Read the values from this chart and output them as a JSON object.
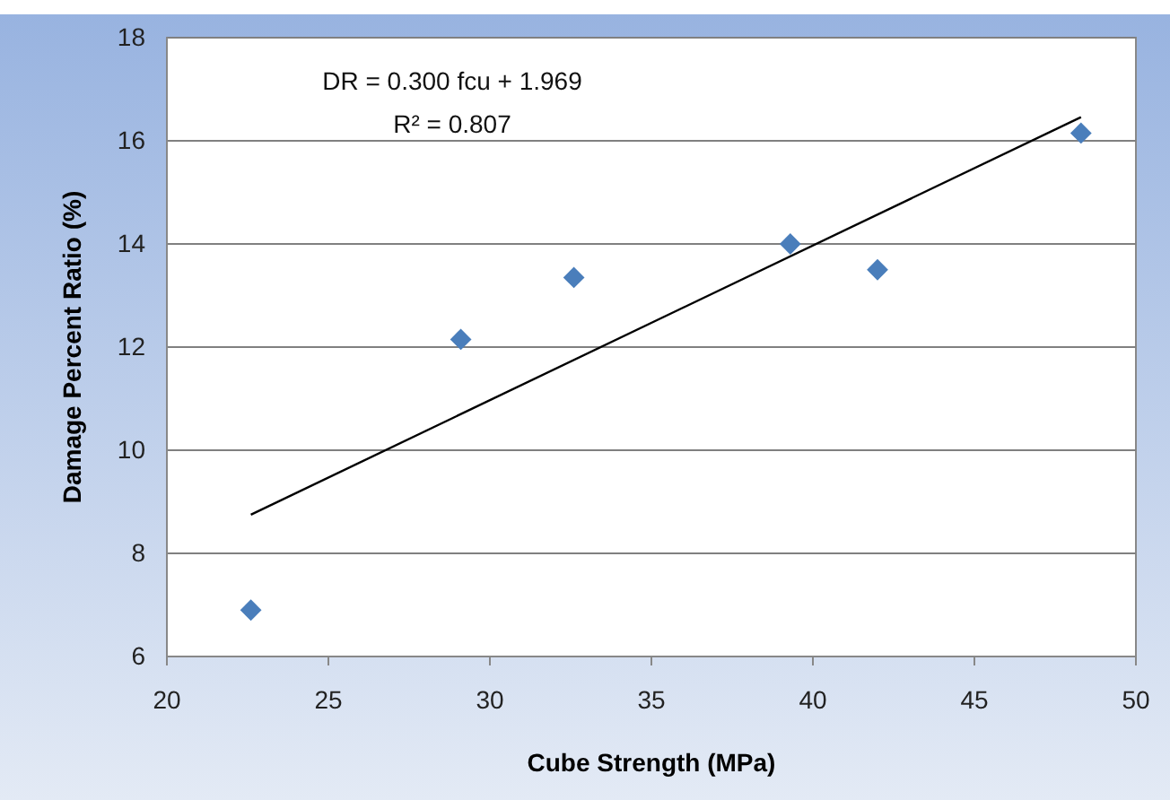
{
  "chart_data": {
    "type": "scatter",
    "xlabel": "Cube Strength (MPa)",
    "ylabel": "Damage Percent Ratio (%)",
    "xlim": [
      20,
      50
    ],
    "xticks": [
      20,
      25,
      30,
      35,
      40,
      45,
      50
    ],
    "ylim": [
      6,
      18
    ],
    "yticks": [
      6,
      8,
      10,
      12,
      14,
      16,
      18
    ],
    "grid": "y",
    "series": [
      {
        "marker": "diamond",
        "color": "#4a7ebb",
        "x": [
          22.6,
          29.1,
          32.6,
          39.3,
          42.0,
          48.3
        ],
        "values": [
          6.9,
          12.15,
          13.35,
          14.0,
          13.5,
          16.15
        ]
      },
      {
        "type": "line",
        "color": "#000000",
        "x": [
          22.6,
          48.3
        ],
        "values": [
          8.75,
          16.46
        ]
      }
    ],
    "annotations": [
      "DR = 0.300 fcu + 1.969",
      "R² = 0.807"
    ]
  }
}
